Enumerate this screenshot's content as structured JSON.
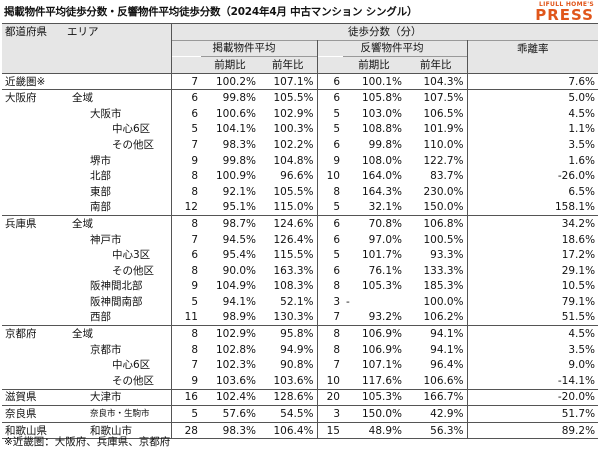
{
  "title": "掲載物件平均徒歩分数・反響物件平均徒歩分数（2024年4月 中古マンション シングル）",
  "brand": {
    "small": "LIFULL HOME'S",
    "big": "PRESS"
  },
  "header": {
    "pref": "都道府県",
    "area": "エリア",
    "walk_minutes": "徒歩分数（分）",
    "listed_avg": "掲載物件平均",
    "response_avg": "反響物件平均",
    "divergence": "乖離率",
    "prev_period": "前期比",
    "prev_year": "前年比"
  },
  "rows": [
    {
      "pref": "近畿圏※",
      "area": "",
      "indent": 0,
      "l_min": "7",
      "l_pp": "100.2%",
      "l_py": "107.1%",
      "r_min": "6",
      "r_pp": "100.1%",
      "r_py": "104.3%",
      "div": "7.6%",
      "group_start": true
    },
    {
      "pref": "大阪府",
      "area": "全域",
      "indent": 0,
      "l_min": "6",
      "l_pp": "99.8%",
      "l_py": "105.5%",
      "r_min": "6",
      "r_pp": "105.8%",
      "r_py": "107.5%",
      "div": "5.0%",
      "group_start": true
    },
    {
      "pref": "",
      "area": "大阪市",
      "indent": 1,
      "l_min": "6",
      "l_pp": "100.6%",
      "l_py": "102.9%",
      "r_min": "5",
      "r_pp": "103.0%",
      "r_py": "106.5%",
      "div": "4.5%"
    },
    {
      "pref": "",
      "area": "中心6区",
      "indent": 2,
      "l_min": "5",
      "l_pp": "104.1%",
      "l_py": "100.3%",
      "r_min": "5",
      "r_pp": "108.8%",
      "r_py": "101.9%",
      "div": "1.1%"
    },
    {
      "pref": "",
      "area": "その他区",
      "indent": 2,
      "l_min": "7",
      "l_pp": "98.3%",
      "l_py": "102.2%",
      "r_min": "6",
      "r_pp": "99.8%",
      "r_py": "110.0%",
      "div": "3.5%"
    },
    {
      "pref": "",
      "area": "堺市",
      "indent": 1,
      "l_min": "9",
      "l_pp": "99.8%",
      "l_py": "104.8%",
      "r_min": "9",
      "r_pp": "108.0%",
      "r_py": "122.7%",
      "div": "1.6%"
    },
    {
      "pref": "",
      "area": "北部",
      "indent": 1,
      "l_min": "8",
      "l_pp": "100.9%",
      "l_py": "96.6%",
      "r_min": "10",
      "r_pp": "164.0%",
      "r_py": "83.7%",
      "div": "-26.0%"
    },
    {
      "pref": "",
      "area": "東部",
      "indent": 1,
      "l_min": "8",
      "l_pp": "92.1%",
      "l_py": "105.5%",
      "r_min": "8",
      "r_pp": "164.3%",
      "r_py": "230.0%",
      "div": "6.5%"
    },
    {
      "pref": "",
      "area": "南部",
      "indent": 1,
      "l_min": "12",
      "l_pp": "95.1%",
      "l_py": "115.0%",
      "r_min": "5",
      "r_pp": "32.1%",
      "r_py": "150.0%",
      "div": "158.1%"
    },
    {
      "pref": "兵庫県",
      "area": "全域",
      "indent": 0,
      "l_min": "8",
      "l_pp": "98.7%",
      "l_py": "124.6%",
      "r_min": "6",
      "r_pp": "70.8%",
      "r_py": "106.8%",
      "div": "34.2%",
      "group_start": true
    },
    {
      "pref": "",
      "area": "神戸市",
      "indent": 1,
      "l_min": "7",
      "l_pp": "94.5%",
      "l_py": "126.4%",
      "r_min": "6",
      "r_pp": "97.0%",
      "r_py": "100.5%",
      "div": "18.6%"
    },
    {
      "pref": "",
      "area": "中心3区",
      "indent": 2,
      "l_min": "6",
      "l_pp": "95.4%",
      "l_py": "115.5%",
      "r_min": "5",
      "r_pp": "101.7%",
      "r_py": "93.3%",
      "div": "17.2%"
    },
    {
      "pref": "",
      "area": "その他区",
      "indent": 2,
      "l_min": "8",
      "l_pp": "90.0%",
      "l_py": "163.3%",
      "r_min": "6",
      "r_pp": "76.1%",
      "r_py": "133.3%",
      "div": "29.1%"
    },
    {
      "pref": "",
      "area": "阪神間北部",
      "indent": 1,
      "l_min": "9",
      "l_pp": "104.9%",
      "l_py": "108.3%",
      "r_min": "8",
      "r_pp": "105.3%",
      "r_py": "185.3%",
      "div": "10.5%"
    },
    {
      "pref": "",
      "area": "阪神間南部",
      "indent": 1,
      "l_min": "5",
      "l_pp": "94.1%",
      "l_py": "52.1%",
      "r_min": "3",
      "r_pp": "-",
      "r_py": "100.0%",
      "div": "79.1%"
    },
    {
      "pref": "",
      "area": "西部",
      "indent": 1,
      "l_min": "11",
      "l_pp": "98.9%",
      "l_py": "130.3%",
      "r_min": "7",
      "r_pp": "93.2%",
      "r_py": "106.2%",
      "div": "51.5%"
    },
    {
      "pref": "京都府",
      "area": "全域",
      "indent": 0,
      "l_min": "8",
      "l_pp": "102.9%",
      "l_py": "95.8%",
      "r_min": "8",
      "r_pp": "106.9%",
      "r_py": "94.1%",
      "div": "4.5%",
      "group_start": true
    },
    {
      "pref": "",
      "area": "京都市",
      "indent": 1,
      "l_min": "8",
      "l_pp": "102.8%",
      "l_py": "94.9%",
      "r_min": "8",
      "r_pp": "106.9%",
      "r_py": "94.1%",
      "div": "3.5%"
    },
    {
      "pref": "",
      "area": "中心6区",
      "indent": 2,
      "l_min": "7",
      "l_pp": "102.3%",
      "l_py": "90.8%",
      "r_min": "7",
      "r_pp": "107.1%",
      "r_py": "96.4%",
      "div": "9.0%"
    },
    {
      "pref": "",
      "area": "その他区",
      "indent": 2,
      "l_min": "9",
      "l_pp": "103.6%",
      "l_py": "103.6%",
      "r_min": "10",
      "r_pp": "117.6%",
      "r_py": "106.6%",
      "div": "-14.1%"
    },
    {
      "pref": "滋賀県",
      "area": "大津市",
      "indent": 1,
      "l_min": "16",
      "l_pp": "102.4%",
      "l_py": "128.6%",
      "r_min": "20",
      "r_pp": "105.3%",
      "r_py": "166.7%",
      "div": "-20.0%",
      "group_start": true
    },
    {
      "pref": "奈良県",
      "area": "奈良市・生駒市",
      "indent": 1,
      "small": true,
      "l_min": "5",
      "l_pp": "57.6%",
      "l_py": "54.5%",
      "r_min": "3",
      "r_pp": "150.0%",
      "r_py": "42.9%",
      "div": "51.7%",
      "group_start": true
    },
    {
      "pref": "和歌山県",
      "area": "和歌山市",
      "indent": 1,
      "l_min": "28",
      "l_pp": "98.3%",
      "l_py": "106.4%",
      "r_min": "15",
      "r_pp": "48.9%",
      "r_py": "56.3%",
      "div": "89.2%",
      "group_start": true
    }
  ],
  "footnote": "※近畿圏：大阪府、兵庫県、京都府"
}
